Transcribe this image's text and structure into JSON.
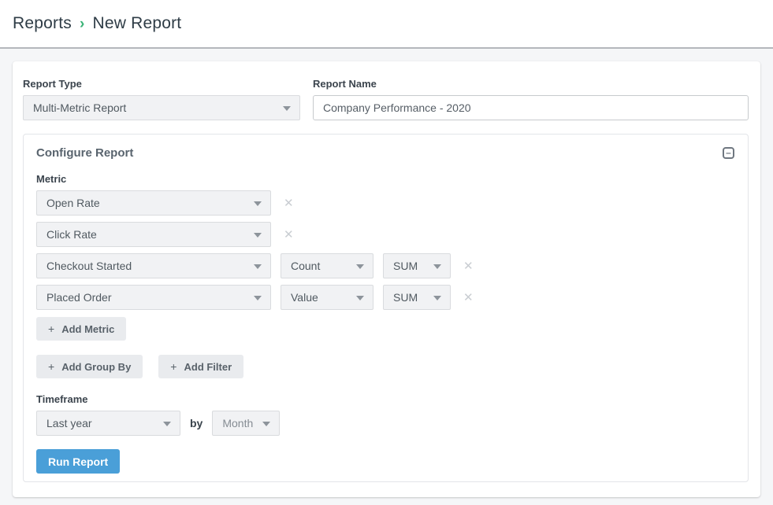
{
  "breadcrumb": {
    "items": [
      "Reports",
      "New Report"
    ],
    "separator": "›"
  },
  "form": {
    "report_type": {
      "label": "Report Type",
      "value": "Multi-Metric Report"
    },
    "report_name": {
      "label": "Report Name",
      "value": "Company Performance - 2020"
    }
  },
  "configure": {
    "title": "Configure Report",
    "metric_label": "Metric",
    "metrics": [
      {
        "metric": "Open Rate"
      },
      {
        "metric": "Click Rate"
      },
      {
        "metric": "Checkout Started",
        "measurement": "Count",
        "aggregation": "SUM"
      },
      {
        "metric": "Placed Order",
        "measurement": "Value",
        "aggregation": "SUM"
      }
    ],
    "buttons": {
      "add_metric": "Add Metric",
      "add_group_by": "Add Group By",
      "add_filter": "Add Filter"
    },
    "timeframe": {
      "label": "Timeframe",
      "value": "Last year",
      "by_text": "by",
      "interval": "Month"
    },
    "run_report": "Run Report"
  },
  "icons": {
    "plus": "+",
    "remove": "✕",
    "collapse": "–"
  },
  "colors": {
    "accent_blue": "#4a9fd8",
    "accent_green": "#3bb377",
    "control_bg": "#f1f2f4",
    "control_border": "#d9dbde"
  }
}
